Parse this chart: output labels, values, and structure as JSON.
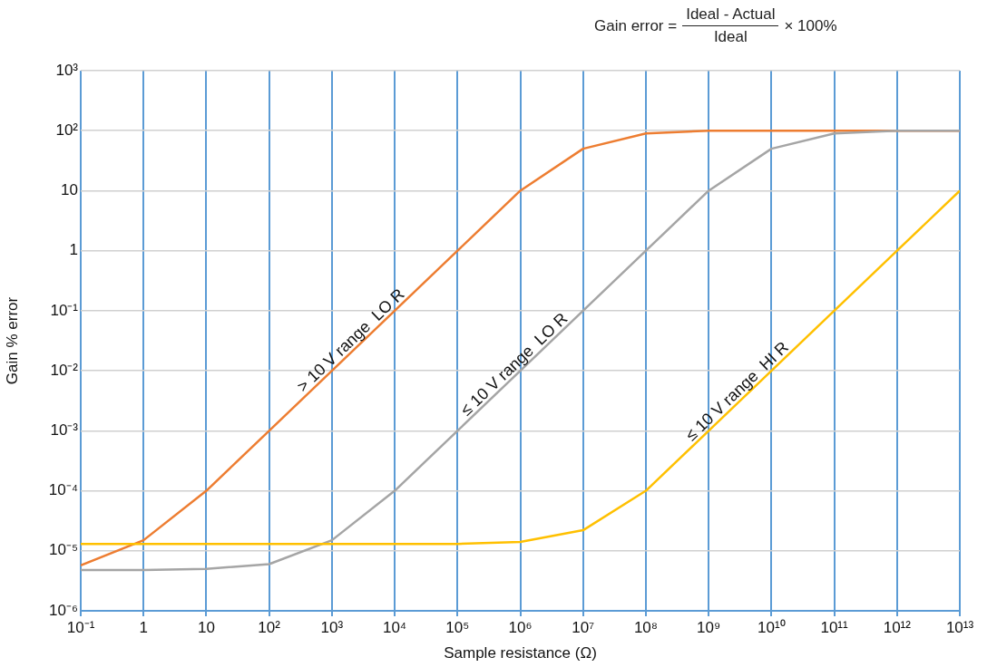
{
  "chart_data": {
    "type": "line",
    "xlabel": "Sample resistance (Ω)",
    "ylabel": "Gain % error",
    "annotations": [
      "Gain error =",
      "Ideal - Actual",
      "Ideal",
      "× 100%"
    ],
    "x": [
      0.1,
      1,
      10,
      100,
      1000,
      10000,
      100000,
      1000000,
      10000000,
      100000000,
      1000000000,
      10000000000,
      100000000000,
      1000000000000,
      10000000000000
    ],
    "series": [
      {
        "name": "> 10 V range  LO R",
        "color": "#ed7d31",
        "values": [
          5.7e-06,
          1.5e-05,
          0.0001,
          0.001,
          0.01,
          0.1,
          1,
          10,
          50,
          90,
          100,
          100,
          100,
          100,
          100
        ]
      },
      {
        "name": "≤ 10 V range  LO R",
        "color": "#a5a5a5",
        "values": [
          4.8e-06,
          4.8e-06,
          5e-06,
          6e-06,
          1.5e-05,
          0.0001,
          0.001,
          0.01,
          0.1,
          1,
          10,
          50,
          90,
          100,
          100
        ]
      },
      {
        "name": "≤ 10 V range  HI R",
        "color": "#ffc000",
        "values": [
          1.3e-05,
          1.3e-05,
          1.3e-05,
          1.3e-05,
          1.3e-05,
          1.3e-05,
          1.3e-05,
          1.4e-05,
          2.2e-05,
          0.0001,
          0.001,
          0.01,
          0.1,
          1,
          10
        ]
      }
    ],
    "log": "xy",
    "xlim": [
      0.1,
      10000000000000
    ],
    "ylim": [
      1e-06,
      1000
    ],
    "xticks": [
      {
        "value": 0.1,
        "label": "10⁻¹"
      },
      1,
      10,
      {
        "value": 100,
        "label": "10²"
      },
      {
        "value": 1000,
        "label": "10³"
      },
      {
        "value": 10000,
        "label": "10⁴"
      },
      {
        "value": 100000,
        "label": "10⁵"
      },
      {
        "value": 1000000,
        "label": "10⁶"
      },
      {
        "value": 10000000,
        "label": "10⁷"
      },
      {
        "value": 100000000,
        "label": "10⁸"
      },
      {
        "value": 1000000000,
        "label": "10⁹"
      },
      {
        "value": 10000000000,
        "label": "10¹⁰"
      },
      {
        "value": 100000000000,
        "label": "10¹¹"
      },
      {
        "value": 1000000000000,
        "label": "10¹²"
      },
      {
        "value": 10000000000000,
        "label": "10¹³"
      }
    ],
    "yticks": [
      {
        "value": 1e-06,
        "label": "10⁻⁶"
      },
      {
        "value": 1e-05,
        "label": "10⁻⁵"
      },
      {
        "value": 0.0001,
        "label": "10⁻⁴"
      },
      {
        "value": 0.001,
        "label": "10⁻³"
      },
      {
        "value": 0.01,
        "label": "10⁻²"
      },
      {
        "value": 0.1,
        "label": "10⁻¹"
      },
      1,
      10,
      {
        "value": 100,
        "label": "10²"
      },
      {
        "value": 1000,
        "label": "10³"
      }
    ],
    "grid": true,
    "legend": false,
    "marker": "none",
    "line_style": "solid"
  }
}
